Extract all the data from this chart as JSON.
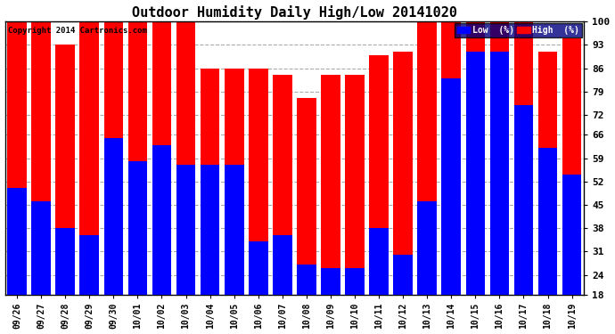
{
  "title": "Outdoor Humidity Daily High/Low 20141020",
  "copyright": "Copyright 2014 Cartronics.com",
  "legend_low": "Low  (%)",
  "legend_high": "High  (%)",
  "dates": [
    "09/26",
    "09/27",
    "09/28",
    "09/29",
    "09/30",
    "10/01",
    "10/02",
    "10/03",
    "10/04",
    "10/05",
    "10/06",
    "10/07",
    "10/08",
    "10/09",
    "10/10",
    "10/11",
    "10/12",
    "10/13",
    "10/14",
    "10/15",
    "10/16",
    "10/17",
    "10/18",
    "10/19"
  ],
  "high": [
    100,
    100,
    93,
    100,
    100,
    100,
    100,
    100,
    86,
    86,
    86,
    84,
    77,
    84,
    84,
    90,
    91,
    100,
    100,
    100,
    100,
    100,
    91,
    95
  ],
  "low": [
    50,
    46,
    38,
    36,
    65,
    58,
    63,
    57,
    57,
    57,
    34,
    36,
    27,
    26,
    26,
    38,
    30,
    46,
    83,
    91,
    91,
    75,
    62,
    54
  ],
  "bg_color": "#ffffff",
  "plot_bg": "#ffffff",
  "high_color": "#ff0000",
  "low_color": "#0000ff",
  "grid_color": "#aaaaaa",
  "title_color": "#000000",
  "bar_width": 0.8,
  "ylim_min": 18,
  "ylim_max": 100,
  "yticks": [
    18,
    24,
    31,
    38,
    45,
    52,
    59,
    66,
    72,
    79,
    86,
    93,
    100
  ]
}
